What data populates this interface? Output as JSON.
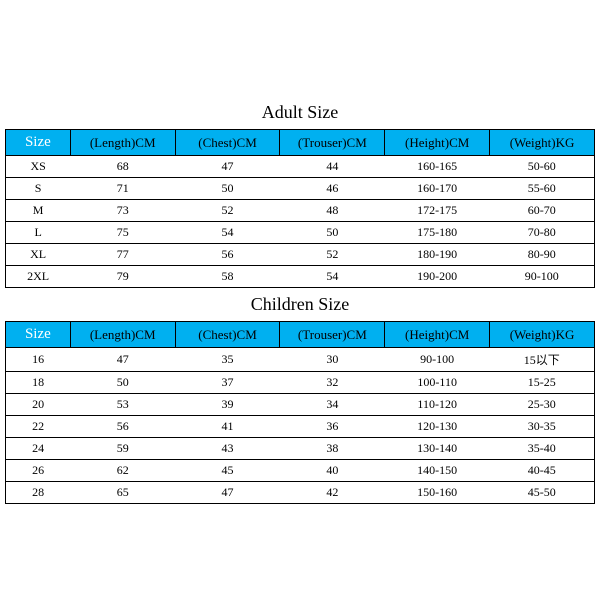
{
  "header_color": "#00b0f0",
  "border_color": "#000000",
  "adult": {
    "title": "Adult Size",
    "columns": [
      "Size",
      "(Length)CM",
      "(Chest)CM",
      "(Trouser)CM",
      "(Height)CM",
      "(Weight)KG"
    ],
    "rows": [
      [
        "XS",
        "68",
        "47",
        "44",
        "160-165",
        "50-60"
      ],
      [
        "S",
        "71",
        "50",
        "46",
        "160-170",
        "55-60"
      ],
      [
        "M",
        "73",
        "52",
        "48",
        "172-175",
        "60-70"
      ],
      [
        "L",
        "75",
        "54",
        "50",
        "175-180",
        "70-80"
      ],
      [
        "XL",
        "77",
        "56",
        "52",
        "180-190",
        "80-90"
      ],
      [
        "2XL",
        "79",
        "58",
        "54",
        "190-200",
        "90-100"
      ]
    ]
  },
  "children": {
    "title": "Children Size",
    "columns": [
      "Size",
      "(Length)CM",
      "(Chest)CM",
      "(Trouser)CM",
      "(Height)CM",
      "(Weight)KG"
    ],
    "rows": [
      [
        "16",
        "47",
        "35",
        "30",
        "90-100",
        "15以下"
      ],
      [
        "18",
        "50",
        "37",
        "32",
        "100-110",
        "15-25"
      ],
      [
        "20",
        "53",
        "39",
        "34",
        "110-120",
        "25-30"
      ],
      [
        "22",
        "56",
        "41",
        "36",
        "120-130",
        "30-35"
      ],
      [
        "24",
        "59",
        "43",
        "38",
        "130-140",
        "35-40"
      ],
      [
        "26",
        "62",
        "45",
        "40",
        "140-150",
        "40-45"
      ],
      [
        "28",
        "65",
        "47",
        "42",
        "150-160",
        "45-50"
      ]
    ]
  }
}
